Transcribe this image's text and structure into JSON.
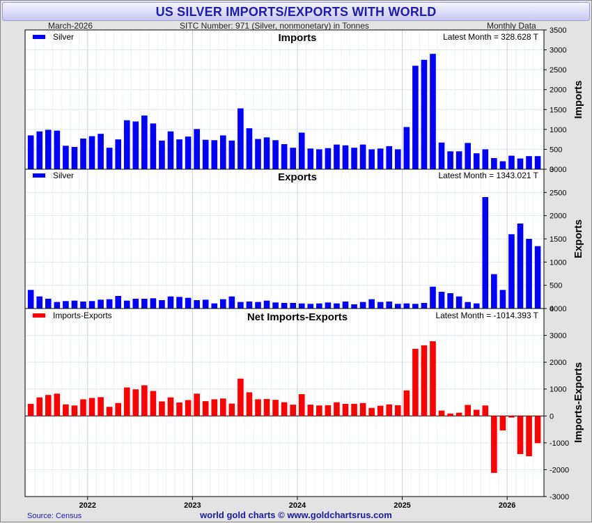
{
  "header": {
    "title": "US SILVER IMPORTS/EXPORTS WITH WORLD",
    "date": "March-2026",
    "sitc": "SITC Number: 971 (Silver, nonmonetary) in Tonnes",
    "frequency": "Monthly Data"
  },
  "footer": {
    "source": "Source: Census",
    "credit": "world gold charts © www.goldchartsrus.com"
  },
  "chart_data": [
    {
      "type": "bar",
      "title": "Imports",
      "ylabel": "Imports",
      "legend": "Silver",
      "latest": "Latest Month = 328.628 T",
      "color": "#0000ff",
      "ylim": [
        0,
        3500
      ],
      "yticks": [
        0,
        500,
        1000,
        1500,
        2000,
        2500,
        3000,
        3500
      ],
      "x_year_labels": [
        "2022",
        "2023",
        "2024",
        "2025",
        "2026"
      ],
      "start": "2021-06",
      "values": [
        850,
        950,
        990,
        970,
        590,
        560,
        770,
        830,
        890,
        540,
        750,
        1230,
        1200,
        1350,
        1150,
        720,
        950,
        750,
        820,
        1010,
        740,
        730,
        850,
        720,
        1530,
        1030,
        760,
        800,
        730,
        630,
        540,
        920,
        520,
        500,
        530,
        620,
        600,
        540,
        620,
        500,
        520,
        580,
        500,
        1060,
        2600,
        2750,
        2900,
        670,
        450,
        450,
        660,
        400,
        500,
        280,
        200,
        340,
        270,
        330,
        329
      ]
    },
    {
      "type": "bar",
      "title": "Exports",
      "ylabel": "Exports",
      "legend": "Silver",
      "latest": "Latest Month = 1343.021 T",
      "color": "#0000ff",
      "ylim": [
        0,
        3000
      ],
      "yticks": [
        0,
        500,
        1000,
        1500,
        2000,
        2500,
        3000
      ],
      "x_year_labels": [
        "2022",
        "2023",
        "2024",
        "2025",
        "2026"
      ],
      "start": "2021-06",
      "values": [
        400,
        260,
        210,
        140,
        160,
        170,
        150,
        160,
        190,
        200,
        270,
        170,
        210,
        210,
        220,
        180,
        260,
        250,
        230,
        180,
        190,
        110,
        200,
        260,
        140,
        150,
        140,
        170,
        130,
        120,
        120,
        110,
        100,
        110,
        130,
        110,
        150,
        90,
        140,
        200,
        140,
        150,
        100,
        110,
        100,
        120,
        470,
        360,
        330,
        260,
        140,
        110,
        2400,
        740,
        400,
        1600,
        1830,
        1500,
        1343
      ]
    },
    {
      "type": "bar",
      "title": "Net Imports-Exports",
      "ylabel": "Imports-Exports",
      "legend": "Imports-Exports",
      "latest": "Latest Month = -1014.393 T",
      "color": "#ff0000",
      "ylim": [
        -3000,
        4000
      ],
      "yticks": [
        -3000,
        -2000,
        -1000,
        0,
        1000,
        2000,
        3000,
        4000
      ],
      "x_year_labels": [
        "2022",
        "2023",
        "2024",
        "2025",
        "2026"
      ],
      "start": "2021-06",
      "values": [
        450,
        690,
        780,
        830,
        430,
        390,
        620,
        670,
        700,
        340,
        480,
        1060,
        990,
        1140,
        930,
        540,
        690,
        500,
        590,
        830,
        550,
        620,
        650,
        460,
        1390,
        880,
        620,
        630,
        600,
        510,
        420,
        810,
        420,
        390,
        400,
        510,
        450,
        450,
        480,
        300,
        380,
        430,
        400,
        950,
        2500,
        2630,
        2780,
        200,
        90,
        120,
        410,
        230,
        390,
        -2120,
        -540,
        -60,
        -1420,
        -1500,
        -1014
      ]
    }
  ]
}
